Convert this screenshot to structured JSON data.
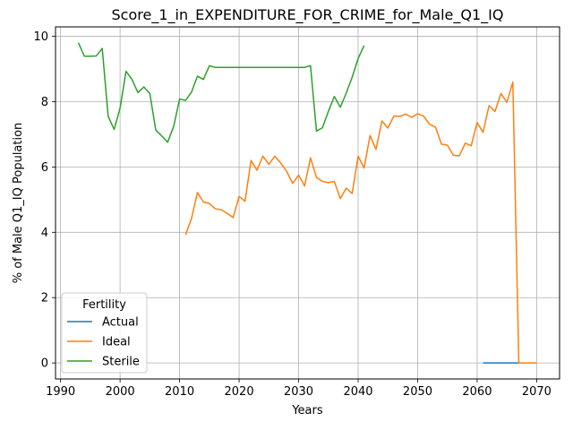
{
  "chart_data": {
    "type": "line",
    "title": "Score_1_in_EXPENDITURE_FOR_CRIME_for_Male_Q1_IQ",
    "xlabel": "Years",
    "ylabel": "% of Male Q1_IQ Population",
    "xlim": [
      1989.15,
      2073.85
    ],
    "ylim": [
      -0.49,
      10.29
    ],
    "xticks": [
      1990,
      2000,
      2010,
      2020,
      2030,
      2040,
      2050,
      2060,
      2070
    ],
    "yticks": [
      0,
      2,
      4,
      6,
      8,
      10
    ],
    "grid": true,
    "legend": {
      "title": "Fertility",
      "placement": "lower-left"
    },
    "series": [
      {
        "name": "Actual",
        "color": "#1f77b4",
        "points": [
          [
            2061,
            0
          ],
          [
            2062,
            0
          ],
          [
            2063,
            0
          ],
          [
            2064,
            0
          ],
          [
            2065,
            0
          ],
          [
            2066,
            0
          ],
          [
            2067,
            0
          ]
        ]
      },
      {
        "name": "Ideal",
        "color": "#ff7f0e",
        "points": [
          [
            2011,
            3.92
          ],
          [
            2012,
            4.42
          ],
          [
            2013,
            5.22
          ],
          [
            2014,
            4.93
          ],
          [
            2015,
            4.88
          ],
          [
            2016,
            4.72
          ],
          [
            2017,
            4.69
          ],
          [
            2018,
            4.58
          ],
          [
            2019,
            4.45
          ],
          [
            2020,
            5.1
          ],
          [
            2021,
            4.95
          ],
          [
            2022,
            6.2
          ],
          [
            2023,
            5.9
          ],
          [
            2024,
            6.33
          ],
          [
            2025,
            6.08
          ],
          [
            2026,
            6.33
          ],
          [
            2027,
            6.12
          ],
          [
            2028,
            5.86
          ],
          [
            2029,
            5.5
          ],
          [
            2030,
            5.75
          ],
          [
            2031,
            5.42
          ],
          [
            2032,
            6.28
          ],
          [
            2033,
            5.68
          ],
          [
            2034,
            5.56
          ],
          [
            2035,
            5.52
          ],
          [
            2036,
            5.56
          ],
          [
            2037,
            5.03
          ],
          [
            2038,
            5.35
          ],
          [
            2039,
            5.19
          ],
          [
            2040,
            6.33
          ],
          [
            2041,
            5.97
          ],
          [
            2042,
            6.96
          ],
          [
            2043,
            6.54
          ],
          [
            2044,
            7.41
          ],
          [
            2045,
            7.19
          ],
          [
            2046,
            7.56
          ],
          [
            2047,
            7.55
          ],
          [
            2048,
            7.62
          ],
          [
            2049,
            7.52
          ],
          [
            2050,
            7.63
          ],
          [
            2051,
            7.56
          ],
          [
            2052,
            7.31
          ],
          [
            2053,
            7.22
          ],
          [
            2054,
            6.7
          ],
          [
            2055,
            6.67
          ],
          [
            2056,
            6.36
          ],
          [
            2057,
            6.34
          ],
          [
            2058,
            6.73
          ],
          [
            2059,
            6.65
          ],
          [
            2060,
            7.36
          ],
          [
            2061,
            7.06
          ],
          [
            2062,
            7.88
          ],
          [
            2063,
            7.7
          ],
          [
            2064,
            8.25
          ],
          [
            2065,
            7.98
          ],
          [
            2066,
            8.6
          ],
          [
            2067,
            0
          ],
          [
            2068,
            0
          ],
          [
            2069,
            0
          ],
          [
            2070,
            0
          ]
        ]
      },
      {
        "name": "Sterile",
        "color": "#2ca02c",
        "points": [
          [
            1993,
            9.8
          ],
          [
            1994,
            9.39
          ],
          [
            1995,
            9.39
          ],
          [
            1996,
            9.4
          ],
          [
            1997,
            9.63
          ],
          [
            1998,
            7.55
          ],
          [
            1999,
            7.15
          ],
          [
            2000,
            7.8
          ],
          [
            2001,
            8.93
          ],
          [
            2002,
            8.68
          ],
          [
            2003,
            8.28
          ],
          [
            2004,
            8.45
          ],
          [
            2005,
            8.25
          ],
          [
            2006,
            7.13
          ],
          [
            2007,
            6.95
          ],
          [
            2008,
            6.76
          ],
          [
            2009,
            7.24
          ],
          [
            2010,
            8.08
          ],
          [
            2011,
            8.04
          ],
          [
            2012,
            8.29
          ],
          [
            2013,
            8.78
          ],
          [
            2014,
            8.68
          ],
          [
            2015,
            9.1
          ],
          [
            2016,
            9.05
          ],
          [
            2017,
            9.05
          ],
          [
            2018,
            9.05
          ],
          [
            2019,
            9.05
          ],
          [
            2020,
            9.05
          ],
          [
            2021,
            9.05
          ],
          [
            2022,
            9.05
          ],
          [
            2023,
            9.05
          ],
          [
            2024,
            9.05
          ],
          [
            2025,
            9.05
          ],
          [
            2026,
            9.05
          ],
          [
            2027,
            9.05
          ],
          [
            2028,
            9.05
          ],
          [
            2029,
            9.05
          ],
          [
            2030,
            9.05
          ],
          [
            2031,
            9.05
          ],
          [
            2032,
            9.1
          ],
          [
            2033,
            7.1
          ],
          [
            2034,
            7.2
          ],
          [
            2035,
            7.7
          ],
          [
            2036,
            8.16
          ],
          [
            2037,
            7.83
          ],
          [
            2038,
            8.26
          ],
          [
            2039,
            8.75
          ],
          [
            2040,
            9.32
          ],
          [
            2041,
            9.72
          ]
        ]
      }
    ]
  }
}
